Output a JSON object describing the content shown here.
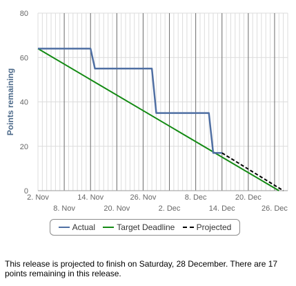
{
  "footer": {
    "summary": "This release is projected to finish on Saturday, 28 December. There are 17 points remaining in this release."
  },
  "colors": {
    "actual": "#4f6fa3",
    "target": "#138a13",
    "projected": "#000000",
    "major_grid": "#6e6e6e",
    "minor_grid": "#dcdcdc",
    "axis_text": "#666666"
  },
  "chart_data": {
    "type": "line",
    "ylabel": "Points remaining",
    "xlabel": "",
    "ylim": [
      0,
      80
    ],
    "yticks": [
      0,
      20,
      40,
      60,
      80
    ],
    "xlim": [
      "2013-11-02",
      "2013-12-29"
    ],
    "xticks_top": [
      {
        "date": "2013-11-02",
        "label": "2. Nov"
      },
      {
        "date": "2013-11-14",
        "label": "14. Nov"
      },
      {
        "date": "2013-11-26",
        "label": "26. Nov"
      },
      {
        "date": "2013-12-08",
        "label": "8. Dec"
      },
      {
        "date": "2013-12-20",
        "label": "20. Dec"
      }
    ],
    "xticks_bottom": [
      {
        "date": "2013-11-08",
        "label": "8. Nov"
      },
      {
        "date": "2013-11-20",
        "label": "20. Nov"
      },
      {
        "date": "2013-12-02",
        "label": "2. Dec"
      },
      {
        "date": "2013-12-14",
        "label": "14. Dec"
      },
      {
        "date": "2013-12-26",
        "label": "26. Dec"
      }
    ],
    "major_gridlines": [
      "2013-11-08",
      "2013-11-14",
      "2013-11-20",
      "2013-11-26",
      "2013-12-02",
      "2013-12-08",
      "2013-12-14",
      "2013-12-20",
      "2013-12-26"
    ],
    "grid": true,
    "legend_position": "bottom-center",
    "series": [
      {
        "name": "Actual",
        "key": "actual",
        "style": "solid",
        "points": [
          {
            "x": "2013-11-02",
            "y": 64
          },
          {
            "x": "2013-11-14",
            "y": 64
          },
          {
            "x": "2013-11-15",
            "y": 55
          },
          {
            "x": "2013-11-28",
            "y": 55
          },
          {
            "x": "2013-11-29",
            "y": 35
          },
          {
            "x": "2013-12-11",
            "y": 35
          },
          {
            "x": "2013-12-12",
            "y": 17
          },
          {
            "x": "2013-12-14",
            "y": 17
          }
        ]
      },
      {
        "name": "Target Deadline",
        "key": "target",
        "style": "solid",
        "points": [
          {
            "x": "2013-11-02",
            "y": 64
          },
          {
            "x": "2013-12-27",
            "y": 0
          }
        ]
      },
      {
        "name": "Projected",
        "key": "projected",
        "style": "dashed",
        "points": [
          {
            "x": "2013-12-14",
            "y": 17
          },
          {
            "x": "2013-12-28",
            "y": 0
          }
        ]
      }
    ]
  }
}
